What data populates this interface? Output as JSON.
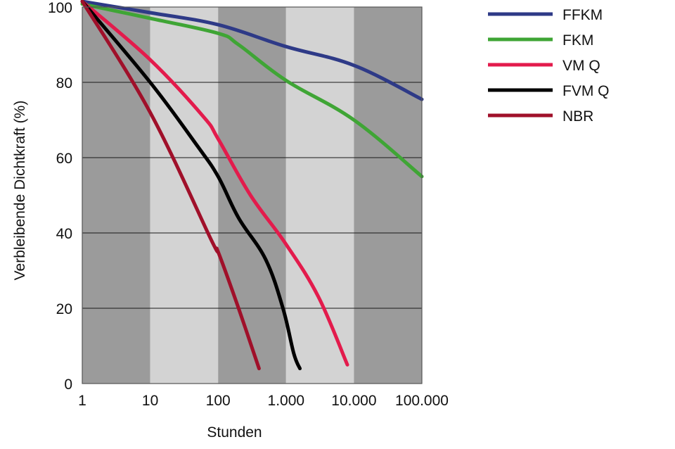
{
  "chart_data": {
    "type": "line",
    "title": "",
    "xlabel": "Stunden",
    "ylabel": "Verbleibende Dichtkraft (%)",
    "x_scale": "log",
    "xlim": [
      1,
      100000
    ],
    "ylim": [
      0,
      100
    ],
    "x_ticks": [
      1,
      10,
      100,
      1000,
      10000,
      100000
    ],
    "x_tick_labels": [
      "1",
      "10",
      "100",
      "1.000",
      "10.000",
      "100.000"
    ],
    "y_ticks": [
      0,
      20,
      40,
      60,
      80,
      100
    ],
    "y_tick_labels": [
      "0",
      "20",
      "40",
      "60",
      "80",
      "100"
    ],
    "grid": "horizontal",
    "band_colors": [
      "#9b9b9b",
      "#d3d3d3"
    ],
    "legend_position": "right",
    "series": [
      {
        "name": "FFKM",
        "color": "#2e3a87",
        "points": [
          [
            1,
            101.5
          ],
          [
            10,
            98.5
          ],
          [
            100,
            95.3
          ],
          [
            1000,
            89.5
          ],
          [
            10000,
            84.5
          ],
          [
            100000,
            75.5
          ]
        ]
      },
      {
        "name": "FKM",
        "color": "#3fa535",
        "points": [
          [
            1,
            100.8
          ],
          [
            10,
            97
          ],
          [
            100,
            93
          ],
          [
            200,
            90
          ],
          [
            1000,
            80.5
          ],
          [
            10000,
            70
          ],
          [
            100000,
            55
          ]
        ]
      },
      {
        "name": "VM Q",
        "color": "#e31b4c",
        "points": [
          [
            1,
            101.5
          ],
          [
            10,
            86
          ],
          [
            60,
            71
          ],
          [
            100,
            65
          ],
          [
            300,
            50
          ],
          [
            1000,
            37
          ],
          [
            3000,
            23
          ],
          [
            8000,
            5
          ]
        ]
      },
      {
        "name": "FVM Q",
        "color": "#000000",
        "points": [
          [
            1,
            101.5
          ],
          [
            10,
            80
          ],
          [
            50,
            63
          ],
          [
            100,
            55
          ],
          [
            200,
            44
          ],
          [
            500,
            33
          ],
          [
            900,
            20
          ],
          [
            1300,
            8
          ],
          [
            1600,
            4
          ]
        ]
      },
      {
        "name": "NBR",
        "color": "#a0102a",
        "points": [
          [
            1,
            101.5
          ],
          [
            10,
            72
          ],
          [
            80,
            38
          ],
          [
            100,
            35
          ],
          [
            200,
            20
          ],
          [
            400,
            4
          ]
        ]
      }
    ]
  }
}
